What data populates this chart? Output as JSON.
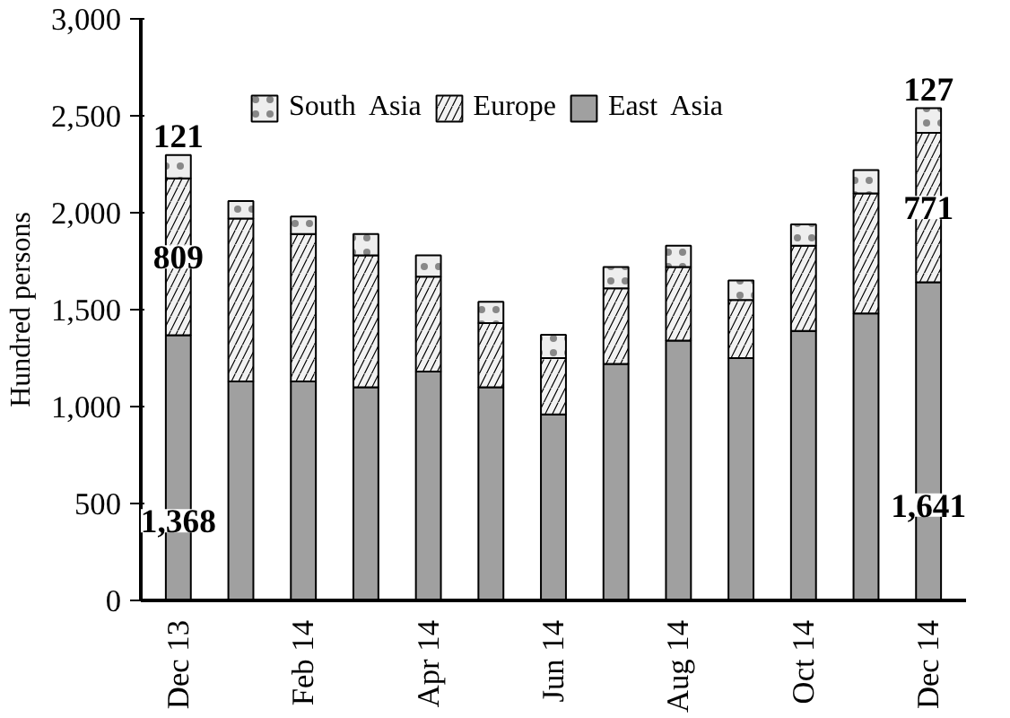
{
  "chart_data": {
    "type": "bar",
    "stacked": true,
    "ylabel": "Hundred persons",
    "categories": [
      "Dec 13",
      null,
      "Feb 14",
      null,
      "Apr 14",
      null,
      "Jun 14",
      null,
      "Aug 14",
      null,
      "Oct 14",
      null,
      "Dec 14"
    ],
    "series": [
      {
        "name": "East  Asia",
        "color": "#a0a0a0",
        "values": [
          1368,
          1130,
          1130,
          1100,
          1180,
          1100,
          960,
          1220,
          1340,
          1250,
          1390,
          1480,
          1641
        ],
        "value_labels": [
          "1,368",
          null,
          null,
          null,
          null,
          null,
          null,
          null,
          null,
          null,
          null,
          null,
          "1,641"
        ]
      },
      {
        "name": "Europe",
        "color": "#f2f2f2",
        "values": [
          809,
          840,
          760,
          680,
          490,
          330,
          290,
          390,
          380,
          300,
          440,
          620,
          771
        ],
        "value_labels": [
          "809",
          null,
          null,
          null,
          null,
          null,
          null,
          null,
          null,
          null,
          null,
          null,
          "771"
        ]
      },
      {
        "name": "South  Asia",
        "color": "#eeeeee",
        "values": [
          121,
          90,
          90,
          110,
          110,
          110,
          120,
          110,
          110,
          100,
          110,
          120,
          127
        ],
        "value_labels": [
          "121",
          null,
          null,
          null,
          null,
          null,
          null,
          null,
          null,
          null,
          null,
          null,
          "127"
        ]
      }
    ],
    "ylim": [
      0,
      3000
    ],
    "yticks": [
      0,
      500,
      {
        "value": 1000,
        "label": "1,000"
      },
      {
        "value": 1500,
        "label": "1,500"
      },
      {
        "value": 2000,
        "label": "2,000"
      },
      {
        "value": 2500,
        "label": "2,500"
      },
      {
        "value": 3000,
        "label": "3,000"
      }
    ],
    "legend": "top",
    "grid": false
  }
}
